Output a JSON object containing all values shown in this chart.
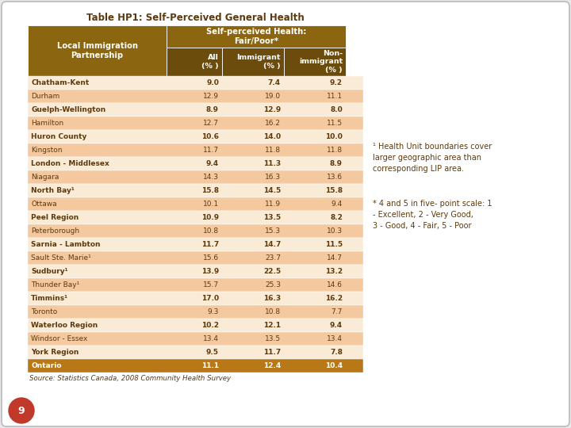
{
  "title": "Table HP1: Self-Perceived General Health",
  "subtitle1": "Self-perceived Health:",
  "subtitle2": "Fair/Poor*",
  "col_header1": "Local Immigration\nPartnership",
  "col_header2": "All\n(% )",
  "col_header3": "Immigrant\n(% )",
  "col_header4": "Non-\nimmigrant\n(% )",
  "rows": [
    [
      "Chatham-Kent",
      "9.0",
      "7.4",
      "9.2"
    ],
    [
      "Durham",
      "12.9",
      "19.0",
      "11.1"
    ],
    [
      "Guelph-Wellington",
      "8.9",
      "12.9",
      "8.0"
    ],
    [
      "Hamilton",
      "12.7",
      "16.2",
      "11.5"
    ],
    [
      "Huron County",
      "10.6",
      "14.0",
      "10.0"
    ],
    [
      "Kingston",
      "11.7",
      "11.8",
      "11.8"
    ],
    [
      "London - Middlesex",
      "9.4",
      "11.3",
      "8.9"
    ],
    [
      "Niagara",
      "14.3",
      "16.3",
      "13.6"
    ],
    [
      "North Bay¹",
      "15.8",
      "14.5",
      "15.8"
    ],
    [
      "Ottawa",
      "10.1",
      "11.9",
      "9.4"
    ],
    [
      "Peel Region",
      "10.9",
      "13.5",
      "8.2"
    ],
    [
      "Peterborough",
      "10.8",
      "15.3",
      "10.3"
    ],
    [
      "Sarnia - Lambton",
      "11.7",
      "14.7",
      "11.5"
    ],
    [
      "Sault Ste. Marie¹",
      "15.6",
      "23.7",
      "14.7"
    ],
    [
      "Sudbury¹",
      "13.9",
      "22.5",
      "13.2"
    ],
    [
      "Thunder Bay¹",
      "15.7",
      "25.3",
      "14.6"
    ],
    [
      "Timmins¹",
      "17.0",
      "16.3",
      "16.2"
    ],
    [
      "Toronto",
      "9.3",
      "10.8",
      "7.7"
    ],
    [
      "Waterloo Region",
      "10.2",
      "12.1",
      "9.4"
    ],
    [
      "Windsor - Essex",
      "13.4",
      "13.5",
      "13.4"
    ],
    [
      "York Region",
      "9.5",
      "11.7",
      "7.8"
    ],
    [
      "Ontario",
      "11.1",
      "12.4",
      "10.4"
    ]
  ],
  "footer": "Source: Statistics Canada, 2008 Community Health Survey",
  "footnote1": "¹ Health Unit boundaries cover\nlarger geographic area than\ncorresponding LIP area.",
  "footnote2": "* 4 and 5 in five- point scale: 1\n- Excellent, 2 - Very Good,\n3 - Good, 4 - Fair, 5 - Poor",
  "page_num": "9",
  "header_bg": "#8B6510",
  "header_bg_dark": "#6B4C0C",
  "row_bg_light": "#FAEBD7",
  "row_bg_dark": "#F5C9A0",
  "ontario_bg": "#B87818",
  "ontario_text": "#FFFFFF",
  "header_text": "#FFFFFF",
  "data_text": "#5C3A10",
  "title_text": "#5C3A10",
  "bg_outer": "#E8E8E8",
  "page_circle_bg": "#C0392B",
  "white": "#FFFFFF"
}
